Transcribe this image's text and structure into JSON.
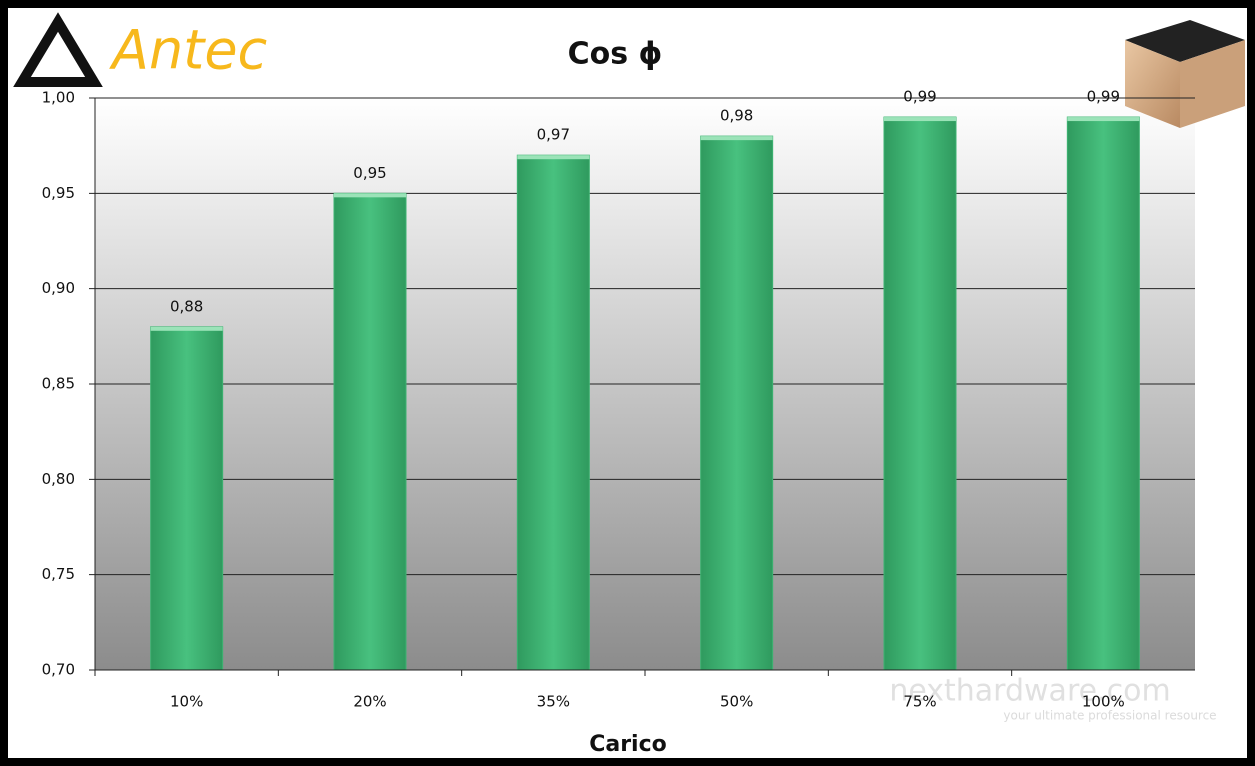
{
  "logo": "Antec",
  "watermark": {
    "brand": "nexthardware.com",
    "tagline": "your ultimate professional resource"
  },
  "chart_data": {
    "type": "bar",
    "title": "Cos ϕ",
    "x_label": "Carico",
    "categories": [
      "10%",
      "20%",
      "35%",
      "50%",
      "75%",
      "100%"
    ],
    "values": [
      0.88,
      0.95,
      0.97,
      0.98,
      0.99,
      0.99
    ],
    "value_labels": [
      "0,88",
      "0,95",
      "0,97",
      "0,98",
      "0,99",
      "0,99"
    ],
    "color": "#3cb371",
    "ylim": [
      0.7,
      1.0
    ],
    "yticks": [
      {
        "value": 0.7,
        "label": "0,70"
      },
      {
        "value": 0.75,
        "label": "0,75"
      },
      {
        "value": 0.8,
        "label": "0,80"
      },
      {
        "value": 0.85,
        "label": "0,85"
      },
      {
        "value": 0.9,
        "label": "0,90"
      },
      {
        "value": 0.95,
        "label": "0,95"
      },
      {
        "value": 1.0,
        "label": "1,00"
      }
    ],
    "grid": true
  }
}
